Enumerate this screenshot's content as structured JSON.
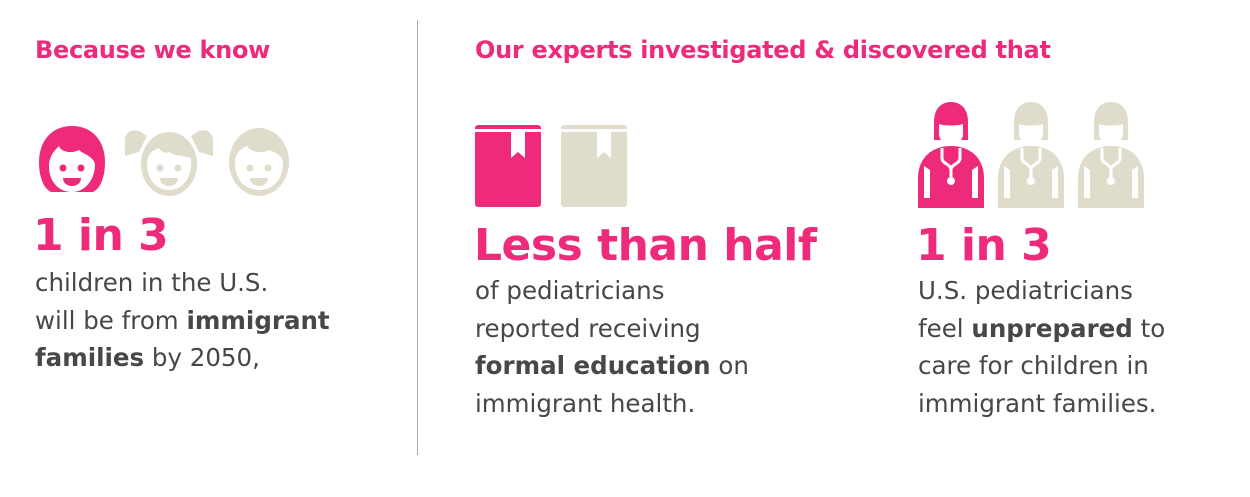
{
  "colors": {
    "accent": "#ee2a7b",
    "inactive": "#e0dccb",
    "text": "#474747"
  },
  "left": {
    "heading": "Because we know",
    "icons": [
      "girl-face-icon",
      "girl-pigtails-face-icon",
      "boy-face-icon"
    ],
    "stat": "1 in 3",
    "line1": "children in the U.S.",
    "line2_a": "will be from ",
    "line2_b": "immigrant",
    "line3_a": "families",
    "line3_b": " by 2050,"
  },
  "right_heading": "Our experts investigated & discovered that",
  "middle": {
    "icons": [
      "book-icon",
      "book-icon"
    ],
    "stat": "Less than half",
    "line1": "of pediatricians",
    "line2": "reported receiving",
    "line3_a": "formal education",
    "line3_b": " on",
    "line4": "immigrant health."
  },
  "right": {
    "icons": [
      "doctor-icon",
      "doctor-icon",
      "doctor-icon"
    ],
    "stat": "1 in 3",
    "line1": "U.S. pediatricians",
    "line2_a": "feel ",
    "line2_b": "unprepared",
    "line2_c": " to",
    "line3": "care for children in",
    "line4": "immigrant families."
  }
}
